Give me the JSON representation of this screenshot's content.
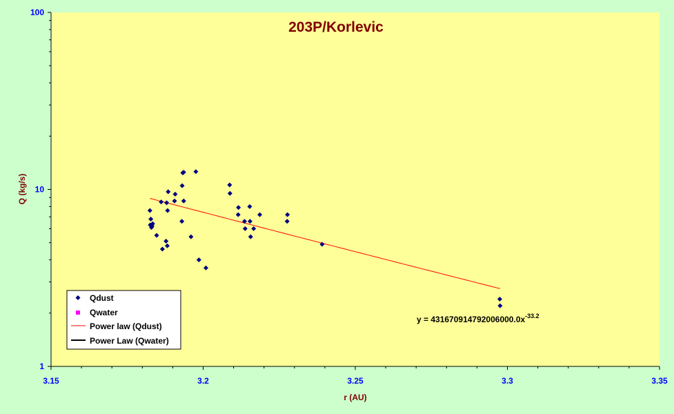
{
  "chart_data": {
    "type": "scatter",
    "title": "203P/Korlevic",
    "xlabel": "r (AU)",
    "ylabel": "Q (kg/s)",
    "xlim": [
      3.15,
      3.35
    ],
    "ylim": [
      1,
      100
    ],
    "y_scale": "log",
    "x_ticks": [
      "3.15",
      "3.2",
      "3.25",
      "3.3",
      "3.35"
    ],
    "y_ticks": [
      "1",
      "10",
      "100"
    ],
    "grid": false,
    "legend_position": "bottom-left",
    "colors": {
      "plot_bg": "#ffff99",
      "page_bg": "#ccffcc",
      "qdust": "#000080",
      "qwater": "#ff00ff",
      "fit_dust": "#ff0000",
      "fit_water": "#000000",
      "tick_text": "#0000ff",
      "title_text": "#800000"
    },
    "series": [
      {
        "name": "Qdust",
        "marker": "diamond",
        "points": [
          [
            3.1825,
            7.6
          ],
          [
            3.1828,
            6.8
          ],
          [
            3.1826,
            6.3
          ],
          [
            3.183,
            6.1
          ],
          [
            3.1832,
            6.2
          ],
          [
            3.1834,
            6.4
          ],
          [
            3.1847,
            5.5
          ],
          [
            3.1862,
            8.5
          ],
          [
            3.1866,
            4.6
          ],
          [
            3.1878,
            5.1
          ],
          [
            3.188,
            8.4
          ],
          [
            3.1882,
            4.8
          ],
          [
            3.1883,
            7.6
          ],
          [
            3.1885,
            9.7
          ],
          [
            3.1906,
            8.6
          ],
          [
            3.1908,
            9.4
          ],
          [
            3.193,
            6.6
          ],
          [
            3.1931,
            10.5
          ],
          [
            3.1933,
            12.4
          ],
          [
            3.1936,
            12.5
          ],
          [
            3.1936,
            8.6
          ],
          [
            3.196,
            5.4
          ],
          [
            3.1976,
            12.6
          ],
          [
            3.1986,
            4.0
          ],
          [
            3.2009,
            3.6
          ],
          [
            3.2087,
            10.6
          ],
          [
            3.2088,
            9.5
          ],
          [
            3.2115,
            7.2
          ],
          [
            3.2116,
            7.9
          ],
          [
            3.2136,
            6.6
          ],
          [
            3.2138,
            6.0
          ],
          [
            3.2153,
            8.0
          ],
          [
            3.2154,
            6.6
          ],
          [
            3.2156,
            5.4
          ],
          [
            3.2166,
            6.0
          ],
          [
            3.2186,
            7.2
          ],
          [
            3.2276,
            6.6
          ],
          [
            3.2277,
            7.2
          ],
          [
            3.2391,
            4.9
          ],
          [
            3.2975,
            2.4
          ],
          [
            3.2976,
            2.2
          ]
        ]
      },
      {
        "name": "Qwater",
        "marker": "square",
        "points": []
      }
    ],
    "fits": [
      {
        "name": "Power law (Qdust)",
        "x_range": [
          3.1825,
          3.2976
        ],
        "y_range": [
          8.9,
          2.75
        ]
      },
      {
        "name": "Power Law (Qwater)",
        "x_range": [],
        "y_range": []
      }
    ],
    "annotation": {
      "equation_main": "y = 431670914792006000.0x",
      "equation_exp": "-33.2"
    }
  }
}
